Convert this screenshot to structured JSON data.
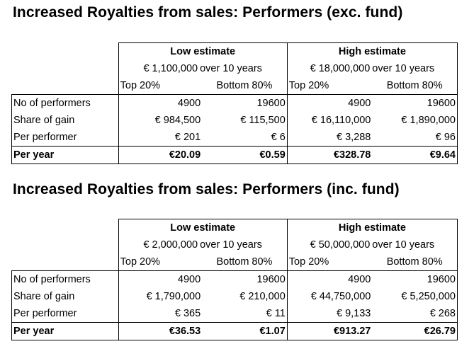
{
  "sections": [
    {
      "title": "Increased Royalties from sales: Performers (exc. fund)",
      "low": {
        "heading": "Low estimate",
        "amount": "€ 1,100,000",
        "period": "over 10 years"
      },
      "high": {
        "heading": "High estimate",
        "amount": "€ 18,000,000",
        "period": "over 10 years"
      },
      "subheads": [
        "Top 20%",
        "Bottom 80%",
        "Top 20%",
        "Bottom 80%"
      ],
      "rows": [
        {
          "label": "No of performers",
          "values": [
            "4900",
            "19600",
            "4900",
            "19600"
          ]
        },
        {
          "label": "Share of gain",
          "values": [
            "€ 984,500",
            "€ 115,500",
            "€ 16,110,000",
            "€ 1,890,000"
          ]
        },
        {
          "label": "Per performer",
          "values": [
            "€ 201",
            "€ 6",
            "€ 3,288",
            "€ 96"
          ]
        },
        {
          "label": "Per year",
          "values": [
            "€20.09",
            "€0.59",
            "€328.78",
            "€9.64"
          ]
        }
      ]
    },
    {
      "title": "Increased Royalties from sales: Performers (inc. fund)",
      "low": {
        "heading": "Low estimate",
        "amount": "€ 2,000,000",
        "period": "over 10 years"
      },
      "high": {
        "heading": "High estimate",
        "amount": "€ 50,000,000",
        "period": "over 10 years"
      },
      "subheads": [
        "Top 20%",
        "Bottom 80%",
        "Top 20%",
        "Bottom 80%"
      ],
      "rows": [
        {
          "label": "No of performers",
          "values": [
            "4900",
            "19600",
            "4900",
            "19600"
          ]
        },
        {
          "label": "Share of gain",
          "values": [
            "€ 1,790,000",
            "€ 210,000",
            "€ 44,750,000",
            "€ 5,250,000"
          ]
        },
        {
          "label": "Per performer",
          "values": [
            "€ 365",
            "€ 11",
            "€ 9,133",
            "€ 268"
          ]
        },
        {
          "label": "Per year",
          "values": [
            "€36.53",
            "€1.07",
            "€913.27",
            "€26.79"
          ]
        }
      ]
    }
  ]
}
